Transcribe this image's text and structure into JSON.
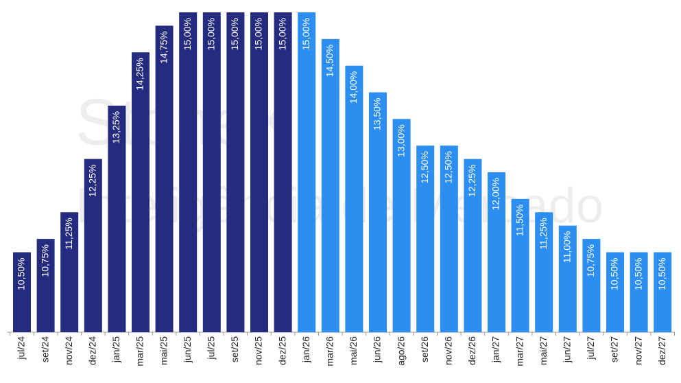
{
  "chart_data": {
    "type": "bar",
    "watermark": [
      "StoneX",
      "Inteligência de Mercado"
    ],
    "categories": [
      "jul/24",
      "set/24",
      "nov/24",
      "dez/24",
      "jan/25",
      "mar/25",
      "mai/25",
      "jun/25",
      "jul/25",
      "set/25",
      "nov/25",
      "dez/25",
      "jan/26",
      "mar/26",
      "mai/26",
      "jun/26",
      "ago/26",
      "set/26",
      "nov/26",
      "dez/26",
      "jan/27",
      "mar/27",
      "mai/27",
      "jun/27",
      "jul/27",
      "set/27",
      "nov/27",
      "dez/27"
    ],
    "values": [
      10.5,
      10.75,
      11.25,
      12.25,
      13.25,
      14.25,
      14.75,
      15,
      15,
      15,
      15,
      15,
      15,
      14.5,
      14,
      13.5,
      13,
      12.5,
      12.5,
      12.25,
      12,
      11.5,
      11.25,
      11,
      10.75,
      10.5,
      10.5,
      10.5
    ],
    "value_labels": [
      "10,50%",
      "10,75%",
      "11,25%",
      "12,25%",
      "13,25%",
      "14,25%",
      "14,75%",
      "15,00%",
      "15,00%",
      "15,00%",
      "15,00%",
      "15,00%",
      "15,00%",
      "14,50%",
      "14,00%",
      "13,50%",
      "13,00%",
      "12,50%",
      "12,50%",
      "12,25%",
      "12,00%",
      "11,50%",
      "11,25%",
      "11,00%",
      "10,75%",
      "10,50%",
      "10,50%",
      "10,50%"
    ],
    "colors": [
      "#252b7e",
      "#252b7e",
      "#252b7e",
      "#252b7e",
      "#252b7e",
      "#252b7e",
      "#252b7e",
      "#252b7e",
      "#252b7e",
      "#252b7e",
      "#252b7e",
      "#252b7e",
      "#2b8ef0",
      "#2b8ef0",
      "#2b8ef0",
      "#2b8ef0",
      "#2b8ef0",
      "#2b8ef0",
      "#2b8ef0",
      "#2b8ef0",
      "#2b8ef0",
      "#2b8ef0",
      "#2b8ef0",
      "#2b8ef0",
      "#2b8ef0",
      "#2b8ef0",
      "#2b8ef0",
      "#2b8ef0"
    ],
    "ylim": [
      9,
      15
    ]
  }
}
